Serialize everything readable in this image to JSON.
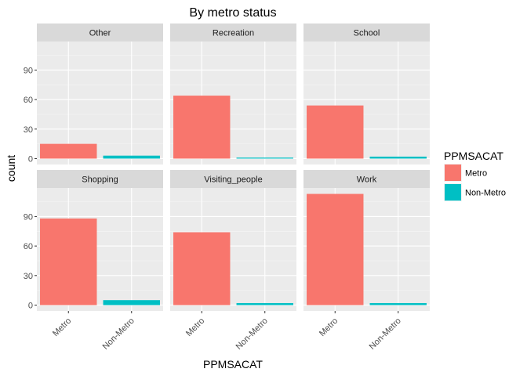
{
  "chart_data": {
    "type": "bar",
    "title": "By metro status",
    "xlabel": "PPMSACAT",
    "ylabel": "count",
    "categories": [
      "Metro",
      "Non-Metro"
    ],
    "yticks": [
      0,
      30,
      60,
      90
    ],
    "ylim": [
      -6,
      119
    ],
    "grid": true,
    "legend": {
      "title": "PPMSACAT",
      "position": "right",
      "entries": [
        {
          "label": "Metro",
          "color": "#F8766D"
        },
        {
          "label": "Non-Metro",
          "color": "#00BFC4"
        }
      ]
    },
    "facets": [
      {
        "name": "Other",
        "values": [
          15,
          3
        ]
      },
      {
        "name": "Recreation",
        "values": [
          64,
          1
        ]
      },
      {
        "name": "School",
        "values": [
          54,
          2
        ]
      },
      {
        "name": "Shopping",
        "values": [
          88,
          5
        ]
      },
      {
        "name": "Visiting_people",
        "values": [
          74,
          2
        ]
      },
      {
        "name": "Work",
        "values": [
          113,
          2
        ]
      }
    ]
  }
}
